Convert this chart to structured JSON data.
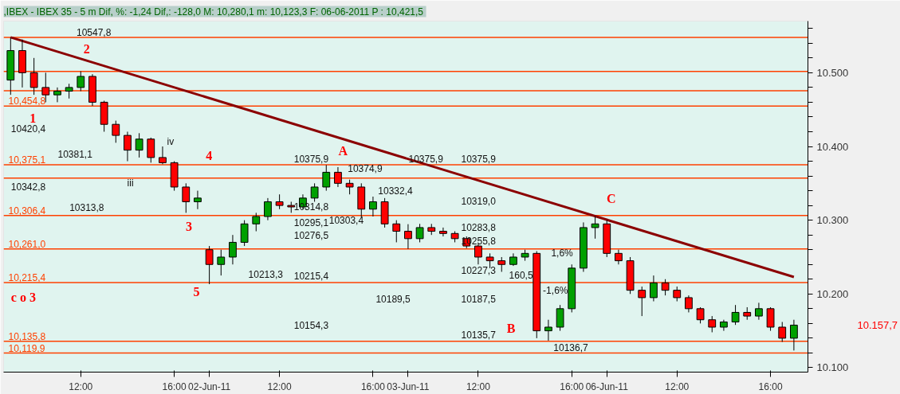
{
  "chart_data": {
    "type": "candlestick",
    "title": ",IBEX - IBEX 35 -  5 m Dif, %: -1,24 Dif,: -128,0 M: 10,280,1 m: 10,123,3 F: 06-06-2011 P : 10,421,5",
    "categories": [
      null,
      null,
      null,
      null,
      null,
      null,
      "12:00",
      null,
      null,
      null,
      null,
      null,
      null,
      null,
      "16:00",
      null,
      null,
      "02-Jun-11",
      null,
      null,
      null,
      null,
      null,
      "12:00",
      null,
      null,
      null,
      null,
      null,
      null,
      null,
      "16:00",
      null,
      null,
      "03-Jun-11",
      null,
      null,
      null,
      null,
      null,
      "12:00",
      null,
      null,
      null,
      null,
      null,
      null,
      null,
      "16:00",
      null,
      null,
      "06-Jun-11",
      null,
      null,
      null,
      null,
      null,
      "12:00",
      null,
      null,
      null,
      null,
      null,
      null,
      null,
      "16:00",
      null,
      null
    ],
    "ohlc": [
      [
        10490,
        10547.8,
        10470,
        10530
      ],
      [
        10530,
        10545,
        10480,
        10500
      ],
      [
        10500,
        10520,
        10470,
        10480
      ],
      [
        10480,
        10500,
        10460,
        10470
      ],
      [
        10470,
        10480,
        10460,
        10475
      ],
      [
        10475,
        10485,
        10465,
        10480
      ],
      [
        10480,
        10502,
        10475,
        10495
      ],
      [
        10495,
        10498,
        10455,
        10460
      ],
      [
        10460,
        10462,
        10420,
        10430
      ],
      [
        10430,
        10435,
        10405,
        10415
      ],
      [
        10415,
        10420,
        10380,
        10395
      ],
      [
        10395,
        10418,
        10385,
        10410
      ],
      [
        10410,
        10412,
        10378,
        10385
      ],
      [
        10385,
        10400,
        10376,
        10378
      ],
      [
        10378,
        10380,
        10340,
        10345
      ],
      [
        10345,
        10350,
        10310,
        10325
      ],
      [
        10325,
        10340,
        10315,
        10330
      ],
      [
        10260,
        10265,
        10213.3,
        10240
      ],
      [
        10240,
        10260,
        10225,
        10250
      ],
      [
        10250,
        10280,
        10240,
        10270
      ],
      [
        10270,
        10300,
        10265,
        10295
      ],
      [
        10295,
        10310,
        10285,
        10305
      ],
      [
        10305,
        10330,
        10300,
        10325
      ],
      [
        10325,
        10335,
        10315,
        10320
      ],
      [
        10320,
        10325,
        10310,
        10318
      ],
      [
        10318,
        10335,
        10315,
        10330
      ],
      [
        10330,
        10350,
        10325,
        10345
      ],
      [
        10345,
        10374.9,
        10340,
        10365
      ],
      [
        10365,
        10372,
        10345,
        10350
      ],
      [
        10350,
        10355,
        10335,
        10345
      ],
      [
        10345,
        10350,
        10303.4,
        10315
      ],
      [
        10315,
        10332,
        10305,
        10325
      ],
      [
        10325,
        10330,
        10290,
        10295
      ],
      [
        10295,
        10300,
        10270,
        10285
      ],
      [
        10285,
        10294.6,
        10261,
        10275
      ],
      [
        10275,
        10295,
        10270,
        10290
      ],
      [
        10290,
        10295,
        10280,
        10285
      ],
      [
        10285,
        10290,
        10278,
        10282
      ],
      [
        10282,
        10285,
        10270,
        10275
      ],
      [
        10275,
        10278,
        10262,
        10265
      ],
      [
        10265,
        10268,
        10240,
        10250
      ],
      [
        10250,
        10255,
        10235,
        10245
      ],
      [
        10245,
        10250,
        10230,
        10240
      ],
      [
        10240,
        10255,
        10238,
        10250
      ],
      [
        10250,
        10260,
        10245,
        10255
      ],
      [
        10255,
        10258,
        10140,
        10150
      ],
      [
        10150,
        10165,
        10136.7,
        10155
      ],
      [
        10155,
        10185,
        10150,
        10180
      ],
      [
        10180,
        10240,
        10175,
        10235
      ],
      [
        10235,
        10297,
        10230,
        10290
      ],
      [
        10290,
        10305,
        10275,
        10295
      ],
      [
        10295,
        10300,
        10250,
        10255
      ],
      [
        10255,
        10260,
        10240,
        10245
      ],
      [
        10245,
        10250,
        10200,
        10205
      ],
      [
        10205,
        10210,
        10170,
        10195
      ],
      [
        10195,
        10225,
        10190,
        10215
      ],
      [
        10215,
        10220,
        10198,
        10205
      ],
      [
        10205,
        10210,
        10190,
        10195
      ],
      [
        10195,
        10198,
        10175,
        10180
      ],
      [
        10180,
        10182,
        10160,
        10165
      ],
      [
        10165,
        10170,
        10148,
        10155
      ],
      [
        10155,
        10165,
        10150,
        10162
      ],
      [
        10162,
        10185,
        10158,
        10175
      ],
      [
        10175,
        10182,
        10165,
        10170
      ],
      [
        10170,
        10188,
        10165,
        10180
      ],
      [
        10180,
        10182,
        10150,
        10155
      ],
      [
        10155,
        10162,
        10135,
        10140
      ],
      [
        10140,
        10165,
        10123.3,
        10157.7
      ]
    ],
    "series": [
      {
        "type": "line",
        "color": "#8b0000",
        "values": [
          10548,
          null,
          null,
          null,
          null,
          null,
          null,
          null,
          null,
          null,
          null,
          null,
          null,
          null,
          null,
          null,
          null,
          null,
          null,
          null,
          null,
          null,
          null,
          null,
          null,
          null,
          null,
          null,
          null,
          null,
          null,
          null,
          null,
          null,
          null,
          null,
          null,
          null,
          null,
          null,
          null,
          null,
          null,
          null,
          null,
          null,
          null,
          null,
          null,
          null,
          null,
          null,
          null,
          null,
          null,
          null,
          null,
          null,
          null,
          null,
          null,
          null,
          null,
          null,
          null,
          null,
          null,
          10223
        ]
      }
    ],
    "ylim": [
      10094,
      10570
    ],
    "yticks": [
      {
        "value": 10100,
        "label": "10.100"
      },
      {
        "value": 10120,
        "label": null
      },
      {
        "value": 10140,
        "label": null
      },
      {
        "value": 10160,
        "label": null
      },
      {
        "value": 10180,
        "label": null
      },
      {
        "value": 10200,
        "label": "10.200"
      },
      {
        "value": 10220,
        "label": null
      },
      {
        "value": 10240,
        "label": null
      },
      {
        "value": 10260,
        "label": null
      },
      {
        "value": 10280,
        "label": null
      },
      {
        "value": 10300,
        "label": "10.300"
      },
      {
        "value": 10320,
        "label": null
      },
      {
        "value": 10340,
        "label": null
      },
      {
        "value": 10360,
        "label": null
      },
      {
        "value": 10380,
        "label": null
      },
      {
        "value": 10400,
        "label": "10.400"
      },
      {
        "value": 10420,
        "label": null
      },
      {
        "value": 10440,
        "label": null
      },
      {
        "value": 10460,
        "label": null
      },
      {
        "value": 10480,
        "label": null
      },
      {
        "value": 10500,
        "label": "10.500"
      },
      {
        "value": 10520,
        "label": null
      },
      {
        "value": 10540,
        "label": null
      },
      {
        "value": 10560,
        "label": null
      }
    ],
    "ref_lines": [
      {
        "axis": "y",
        "value": 10547.8,
        "label": null,
        "color": "#ff4000"
      },
      {
        "axis": "y",
        "value": 10501.7,
        "label": null,
        "color": "#ff4000"
      },
      {
        "axis": "y",
        "value": 10475.5,
        "label": null,
        "color": "#ff4000"
      },
      {
        "axis": "y",
        "value": 10454.8,
        "label": "10,454,8",
        "color": "#ff4000"
      },
      {
        "axis": "y",
        "value": 10375.1,
        "label": "10,375,1",
        "color": "#ff4000"
      },
      {
        "axis": "y",
        "value": 10357.0,
        "label": null,
        "color": "#ff4000"
      },
      {
        "axis": "y",
        "value": 10306.4,
        "label": "10,306,4",
        "color": "#ff4000"
      },
      {
        "axis": "y",
        "value": 10261.0,
        "label": "10,261,0",
        "color": "#ff4000"
      },
      {
        "axis": "y",
        "value": 10215.4,
        "label": "10,215,4",
        "color": "#ff4000"
      },
      {
        "axis": "y",
        "value": 10135.8,
        "label": "10,135,8",
        "color": "#ff4000"
      },
      {
        "axis": "y",
        "value": 10119.9,
        "label": "10,119,9",
        "color": "#ff4000"
      }
    ],
    "annotations": [
      "A",
      "B",
      "C",
      "1",
      "2",
      "3",
      "4",
      "5",
      "c o 3",
      "iii",
      "iv",
      "10375,9",
      "10375,9",
      "10375,9",
      "10319,0",
      "10283,8",
      "10255,8",
      "10227,3",
      "10187,5",
      "10135,7",
      "10189,5",
      "10154,3",
      "10215,4",
      "10276,5",
      "10295,1",
      "10314,8",
      "10547,8",
      "10342,8",
      "10381,1",
      "10420,4",
      "10313,8",
      "10213,3",
      "10374,9",
      "10303,4",
      "10332,4",
      "160,5",
      "1,6%",
      "-1,6%",
      "10136,7",
      "10.157,7"
    ]
  }
}
